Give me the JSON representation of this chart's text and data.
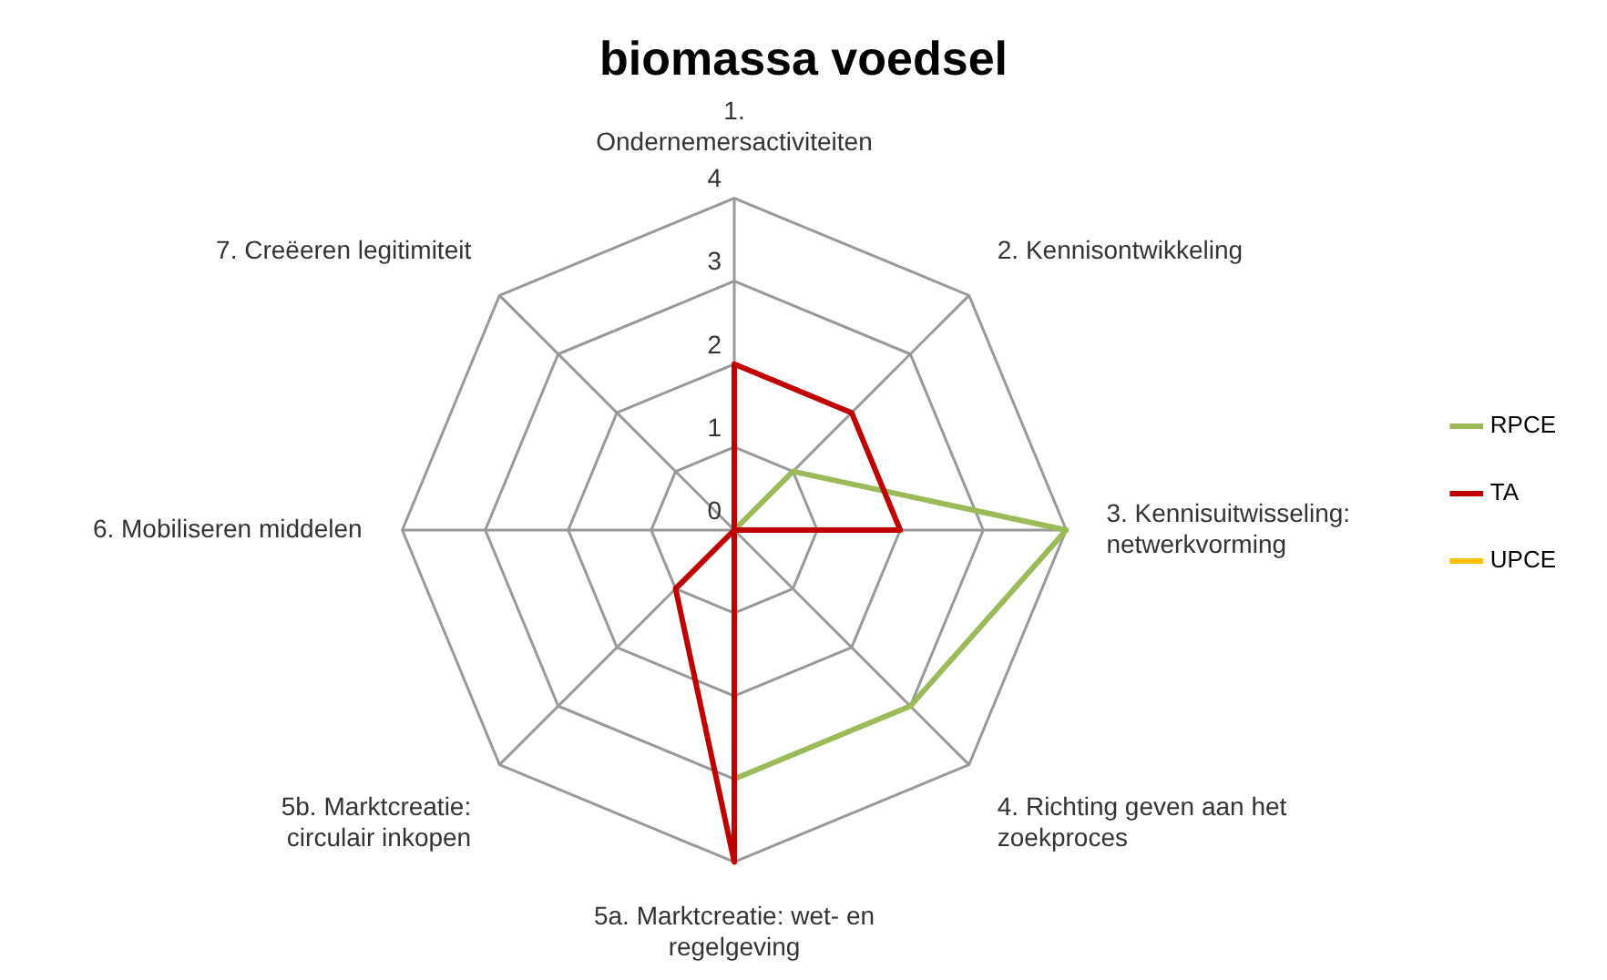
{
  "chart_data": {
    "type": "radar",
    "title": "biomassa voedsel",
    "categories": [
      "1. Ondernemersactiviteiten",
      "2. Kennisontwikkeling",
      "3. Kennisuitwisseling: netwerkvorming",
      "4. Richting geven aan het zoekproces",
      "5a. Marktcreatie: wet- en regelgeving",
      "5b. Marktcreatie: circulair inkopen",
      "6. Mobiliseren middelen",
      "7. Creëeren legitimiteit"
    ],
    "series": [
      {
        "name": "RPCE",
        "color": "#9bbb59",
        "values": [
          0,
          1,
          4,
          3,
          3,
          0,
          0,
          0
        ]
      },
      {
        "name": "TA",
        "color": "#c00000",
        "values": [
          2,
          2,
          2,
          0,
          4,
          1,
          0,
          0
        ]
      },
      {
        "name": "UPCE",
        "color": "#ffc000",
        "values": [
          null,
          null,
          null,
          null,
          null,
          null,
          null,
          null
        ]
      }
    ],
    "ylim": [
      0,
      4
    ],
    "yticks": [
      0,
      1,
      2,
      3,
      4
    ],
    "grid": true,
    "legend": "right",
    "marker": "none"
  }
}
